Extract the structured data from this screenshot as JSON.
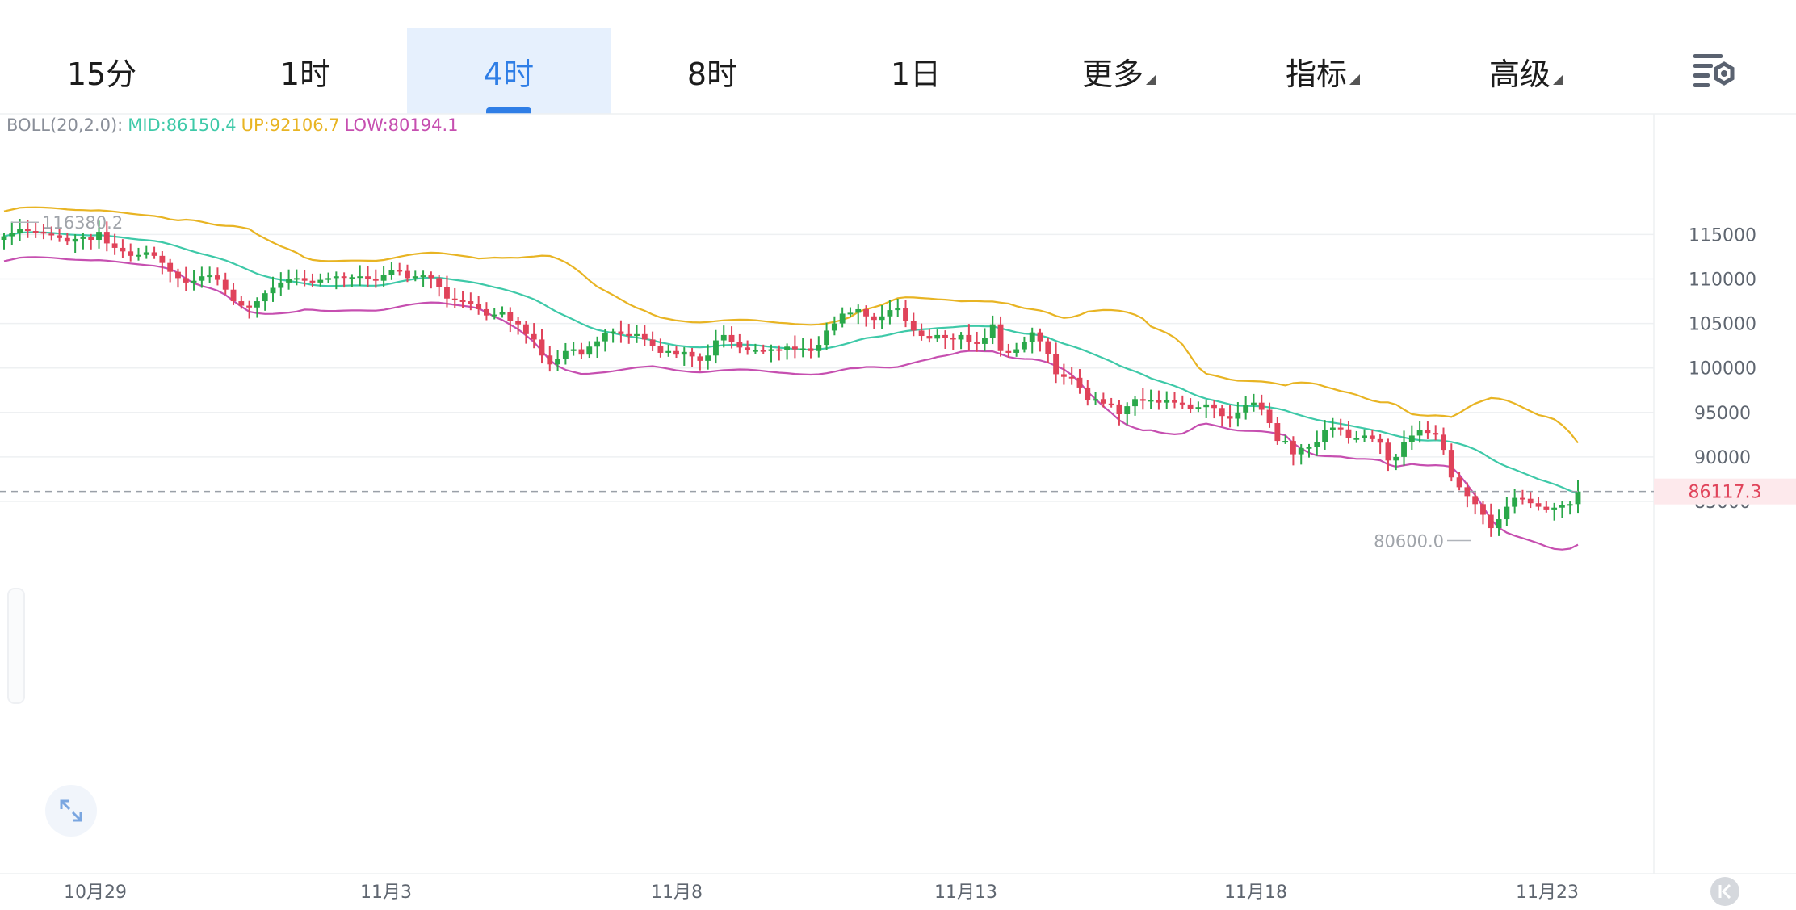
{
  "tabs": [
    {
      "label": "15分",
      "active": false,
      "dropdown": false
    },
    {
      "label": "1时",
      "active": false,
      "dropdown": false
    },
    {
      "label": "4时",
      "active": true,
      "dropdown": false
    },
    {
      "label": "8时",
      "active": false,
      "dropdown": false
    },
    {
      "label": "1日",
      "active": false,
      "dropdown": false
    },
    {
      "label": "更多",
      "active": false,
      "dropdown": true
    },
    {
      "label": "指标",
      "active": false,
      "dropdown": true
    },
    {
      "label": "高级",
      "active": false,
      "dropdown": true
    }
  ],
  "settings_icon": "chart-settings-icon",
  "indicator": {
    "prefix": "BOLL(20,2.0):",
    "mid": "MID:86150.4",
    "up": "UP:92106.7",
    "low": "LOW:80194.1"
  },
  "colors": {
    "up_candle": "#2aa84a",
    "down_candle": "#e0435a",
    "mid_line": "#3ec9a8",
    "up_band": "#e8b423",
    "low_band": "#c64fb0",
    "active_tab": "#2f7ee6",
    "price_tag": "#e0435a"
  },
  "chart_data": {
    "type": "candlestick",
    "indicator": "BOLL(20,2.0)",
    "y_ticks": [
      115000,
      110000,
      105000,
      100000,
      95000,
      90000,
      85000
    ],
    "x_tick_labels": [
      "10月29",
      "11月3",
      "11月8",
      "11月13",
      "11月18",
      "11月23"
    ],
    "current_price": "86117.3",
    "high_label": "116380.2",
    "low_label": "80600.0",
    "close_series": [
      114800,
      115200,
      115600,
      115400,
      115300,
      115100,
      114900,
      114600,
      114200,
      114500,
      114700,
      114400,
      115300,
      114000,
      113500,
      113100,
      112600,
      112700,
      113000,
      112600,
      111800,
      110800,
      110100,
      109600,
      109800,
      110300,
      110400,
      109900,
      108800,
      107500,
      107000,
      106800,
      107500,
      108400,
      109000,
      109600,
      110000,
      110100,
      109800,
      109600,
      109900,
      110100,
      110300,
      110200,
      110200,
      110300,
      110000,
      109800,
      110500,
      111000,
      110900,
      110100,
      110300,
      110400,
      110100,
      109100,
      107800,
      107600,
      107500,
      107200,
      106600,
      105900,
      106000,
      106300,
      105300,
      104900,
      103800,
      103200,
      101400,
      100400,
      101000,
      101900,
      102100,
      101500,
      102400,
      103000,
      103900,
      104100,
      103800,
      103600,
      103800,
      103200,
      102500,
      101700,
      101900,
      101500,
      101800,
      101300,
      100800,
      101400,
      103100,
      103700,
      102900,
      102300,
      102000,
      102000,
      101900,
      102100,
      102000,
      102400,
      102100,
      102200,
      101900,
      102600,
      104200,
      105000,
      106100,
      106200,
      106600,
      105800,
      105400,
      105800,
      106500,
      106700,
      105300,
      104200,
      103600,
      103300,
      103700,
      103400,
      103200,
      103700,
      102900,
      102700,
      103400,
      104900,
      101900,
      101700,
      102100,
      102900,
      104000,
      103000,
      101600,
      99300,
      99000,
      98900,
      97800,
      96400,
      96500,
      96000,
      95900,
      94800,
      95700,
      96500,
      96300,
      96400,
      96100,
      96400,
      96100,
      95900,
      95400,
      95600,
      95900,
      95500,
      94600,
      94300,
      95000,
      95800,
      96100,
      95300,
      93800,
      91800,
      91800,
      90300,
      91000,
      91100,
      91700,
      93000,
      93300,
      93100,
      92100,
      92100,
      92400,
      92000,
      91600,
      89600,
      90000,
      91700,
      92400,
      93000,
      92700,
      92500,
      90800,
      87700,
      86600,
      85600,
      84700,
      83500,
      82000,
      83000,
      84400,
      85400,
      85300,
      84800,
      84400,
      84100,
      84300,
      84600,
      84700,
      86117.3
    ]
  }
}
